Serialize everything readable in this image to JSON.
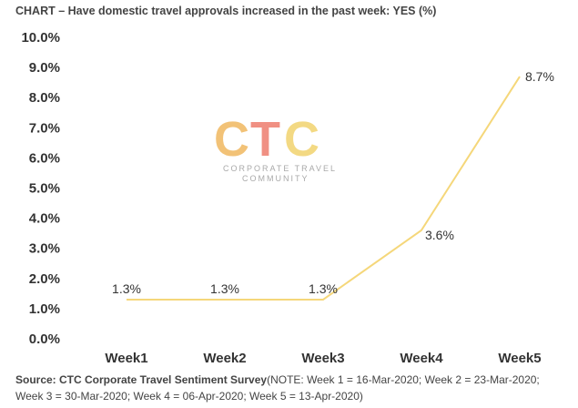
{
  "title": "CHART – Have domestic travel approvals increased in the past week: YES (%)",
  "logo": {
    "text": "CTC",
    "line1": "CORPORATE TRAVEL",
    "line2": "COMMUNITY",
    "colors": {
      "c": "#f0b860",
      "t": "#ee7d6e",
      "c2": "#f2d36e"
    }
  },
  "source": {
    "label": "Source: CTC Corporate Travel Sentiment Survey",
    "note": "(NOTE: Week 1 = 16-Mar-2020; Week 2 = 23-Mar-2020; Week 3 = 30-Mar-2020; Week 4 = 06-Apr-2020; Week 5 = 13-Apr-2020)"
  },
  "chart_data": {
    "type": "line",
    "categories": [
      "Week1",
      "Week2",
      "Week3",
      "Week4",
      "Week5"
    ],
    "values": [
      1.3,
      1.3,
      1.3,
      3.6,
      8.7
    ],
    "data_labels": [
      "1.3%",
      "1.3%",
      "1.3%",
      "3.6%",
      "8.7%"
    ],
    "ylim": [
      0,
      10
    ],
    "yticks": [
      0,
      1,
      2,
      3,
      4,
      5,
      6,
      7,
      8,
      9,
      10
    ],
    "ytick_labels": [
      "0.0%",
      "1.0%",
      "2.0%",
      "3.0%",
      "4.0%",
      "5.0%",
      "6.0%",
      "7.0%",
      "8.0%",
      "9.0%",
      "10.0%"
    ],
    "line_color": "#f5d77a",
    "grid": false,
    "legend": "none"
  }
}
